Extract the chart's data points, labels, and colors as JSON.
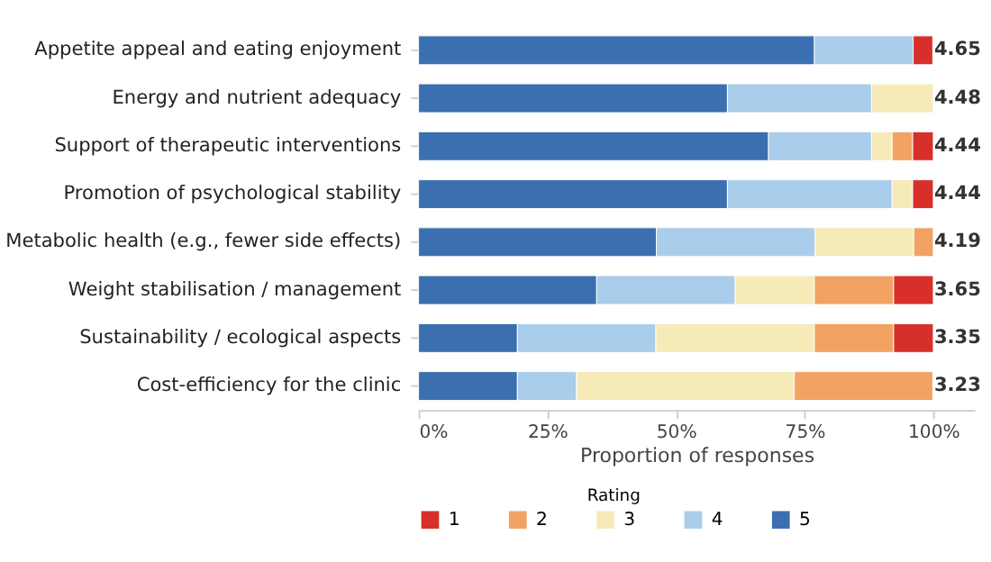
{
  "chart_data": {
    "type": "bar",
    "orientation": "horizontal",
    "stacked": true,
    "categories": [
      "Appetite appeal and eating enjoyment",
      "Energy and nutrient adequacy",
      "Support of therapeutic interventions",
      "Promotion of psychological stability",
      "Metabolic health (e.g., fewer side effects)",
      "Weight stabilisation / management",
      "Sustainability / ecological aspects",
      "Cost-efficiency for the clinic"
    ],
    "series": [
      {
        "name": "5",
        "color": "#3b6fb0",
        "values": [
          76.9,
          60,
          68,
          60,
          46.2,
          34.6,
          19.2,
          19.2
        ]
      },
      {
        "name": "4",
        "color": "#a9cdea",
        "values": [
          19.2,
          28,
          20,
          32,
          30.8,
          26.9,
          26.9,
          11.5
        ]
      },
      {
        "name": "3",
        "color": "#f6ebb8",
        "values": [
          0,
          12,
          4,
          4,
          19.2,
          15.4,
          30.8,
          42.3
        ]
      },
      {
        "name": "2",
        "color": "#f2a262",
        "values": [
          0,
          0,
          4,
          0,
          3.8,
          15.4,
          15.4,
          26.9
        ]
      },
      {
        "name": "1",
        "color": "#d7302a",
        "values": [
          3.8,
          0,
          4,
          4,
          0,
          7.7,
          7.7,
          0
        ]
      }
    ],
    "xlim": [
      0,
      108
    ],
    "xticks": [
      {
        "value": 0,
        "label": "0%"
      },
      {
        "value": 25,
        "label": "25%"
      },
      {
        "value": 50,
        "label": "50%"
      },
      {
        "value": 75,
        "label": "75%"
      },
      {
        "value": 100,
        "label": "100%"
      }
    ],
    "xlabel": "Proportion of responses",
    "legend_title": "Rating",
    "legend": "bottom",
    "grid": false,
    "annotations": [
      "4.65",
      "4.48",
      "4.44",
      "4.44",
      "4.19",
      "3.65",
      "3.35",
      "3.23"
    ]
  }
}
